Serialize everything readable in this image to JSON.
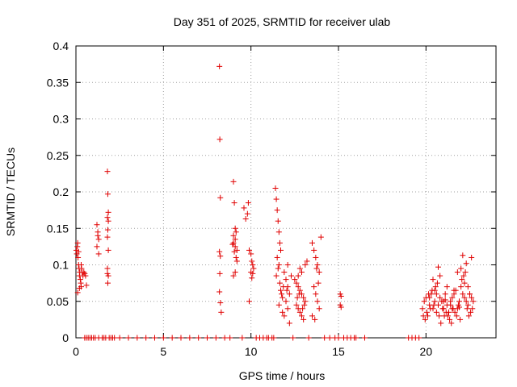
{
  "chart_data": {
    "type": "scatter",
    "title": "Day 351 of 2025, SRMTID for receiver ulab",
    "xlabel": "GPS time / hours",
    "ylabel": "SRMTID / TECUs",
    "xlim": [
      0,
      24
    ],
    "ylim": [
      0,
      0.4
    ],
    "xticks": [
      0,
      5,
      10,
      15,
      20
    ],
    "xtick_labels": [
      "0",
      "5",
      "10",
      "15",
      "20"
    ],
    "yticks": [
      0,
      0.05,
      0.1,
      0.15,
      0.2,
      0.25,
      0.3,
      0.35,
      0.4
    ],
    "ytick_labels": [
      "0",
      "0.05",
      "0.1",
      "0.15",
      "0.2",
      "0.25",
      "0.3",
      "0.35",
      "0.4"
    ],
    "grid": true,
    "marker": "+",
    "color": "#e00000",
    "series": [
      {
        "name": "SRMTID",
        "x": [
          0.02,
          0.05,
          0.08,
          0.1,
          0.12,
          0.15,
          0.18,
          0.2,
          0.22,
          0.25,
          0.28,
          0.3,
          0.32,
          0.35,
          0.4,
          0.45,
          0.5,
          0.55,
          0.6,
          0.1,
          0.2,
          0.3,
          0.15,
          1.2,
          1.25,
          1.3,
          1.2,
          1.3,
          1.25,
          1.8,
          1.82,
          1.85,
          1.8,
          1.85,
          1.82,
          1.8,
          1.85,
          1.8,
          1.85,
          1.82,
          1.8,
          8.2,
          8.22,
          8.25,
          8.2,
          8.25,
          8.22,
          8.2,
          8.25,
          8.3,
          9.0,
          9.05,
          9.1,
          9.15,
          9.0,
          9.1,
          9.05,
          9.15,
          9.2,
          9.0,
          9.1,
          8.95,
          9.2,
          9.1,
          9.0,
          9.6,
          9.7,
          9.8,
          9.85,
          9.9,
          10.0,
          10.05,
          10.1,
          10.15,
          10.0,
          10.1,
          10.05,
          9.9,
          11.4,
          11.45,
          11.5,
          11.55,
          11.6,
          11.65,
          11.7,
          11.5,
          11.6,
          11.55,
          11.45,
          11.65,
          11.7,
          11.75,
          11.8,
          11.6,
          11.9,
          12.0,
          12.1,
          12.2,
          12.0,
          12.1,
          11.8,
          11.9,
          12.2,
          12.3,
          12.1,
          11.85,
          12.05,
          12.5,
          12.6,
          12.7,
          12.8,
          12.9,
          13.0,
          13.1,
          12.6,
          12.7,
          12.8,
          12.9,
          13.0,
          12.7,
          12.9,
          13.1,
          13.2,
          12.8,
          12.65,
          12.75,
          12.95,
          13.05,
          13.5,
          13.6,
          13.7,
          13.8,
          13.9,
          14.0,
          13.6,
          13.7,
          13.8,
          13.9,
          13.5,
          13.75,
          13.85,
          13.65,
          15.1,
          15.15,
          15.1,
          15.15,
          19.8,
          19.9,
          20.0,
          20.1,
          20.2,
          20.3,
          20.4,
          20.5,
          20.6,
          20.7,
          20.8,
          20.9,
          21.0,
          21.1,
          21.2,
          21.3,
          21.4,
          21.5,
          21.6,
          21.7,
          21.8,
          21.9,
          22.0,
          22.1,
          22.2,
          22.3,
          22.4,
          22.5,
          22.6,
          22.7,
          19.85,
          19.95,
          20.05,
          20.15,
          20.25,
          20.35,
          20.45,
          20.55,
          20.65,
          20.75,
          20.85,
          20.95,
          21.05,
          21.15,
          21.25,
          21.35,
          21.45,
          21.55,
          21.65,
          21.75,
          21.85,
          21.95,
          22.05,
          22.15,
          22.25,
          22.35,
          22.45,
          22.55,
          22.65,
          20.2,
          20.4,
          20.6,
          20.8,
          21.0,
          21.2,
          21.4,
          21.6,
          21.8,
          22.0,
          22.2,
          22.4,
          22.6,
          20.5,
          20.7,
          21.1,
          21.5,
          21.9,
          22.1,
          22.3,
          22.5,
          0.5,
          0.6,
          0.7,
          0.8,
          0.9,
          1.0,
          1.1,
          1.3,
          1.5,
          1.6,
          1.7,
          1.9,
          2.0,
          2.1,
          2.2,
          2.5,
          3.0,
          3.5,
          4.0,
          4.5,
          5.0,
          5.5,
          6.0,
          6.5,
          7.0,
          7.5,
          8.0,
          8.5,
          8.8,
          9.5,
          10.3,
          10.5,
          10.7,
          10.9,
          11.0,
          11.2,
          11.3,
          12.4,
          13.3,
          14.2,
          14.5,
          14.8,
          15.0,
          15.3,
          15.5,
          15.7,
          15.9,
          16.0,
          16.5,
          19.0,
          19.2,
          19.4,
          19.6
        ],
        "y": [
          0.12,
          0.115,
          0.125,
          0.13,
          0.11,
          0.1,
          0.095,
          0.085,
          0.09,
          0.08,
          0.075,
          0.07,
          0.095,
          0.09,
          0.085,
          0.09,
          0.088,
          0.085,
          0.072,
          0.062,
          0.068,
          0.1,
          0.118,
          0.155,
          0.14,
          0.135,
          0.125,
          0.115,
          0.145,
          0.228,
          0.197,
          0.172,
          0.165,
          0.16,
          0.148,
          0.138,
          0.12,
          0.095,
          0.085,
          0.075,
          0.088,
          0.372,
          0.272,
          0.192,
          0.118,
          0.112,
          0.088,
          0.063,
          0.048,
          0.035,
          0.214,
          0.185,
          0.15,
          0.145,
          0.13,
          0.125,
          0.118,
          0.11,
          0.105,
          0.14,
          0.135,
          0.128,
          0.12,
          0.09,
          0.085,
          0.178,
          0.163,
          0.17,
          0.185,
          0.12,
          0.115,
          0.105,
          0.1,
          0.095,
          0.09,
          0.088,
          0.082,
          0.05,
          0.205,
          0.19,
          0.175,
          0.16,
          0.145,
          0.13,
          0.12,
          0.11,
          0.1,
          0.095,
          0.085,
          0.075,
          0.065,
          0.06,
          0.055,
          0.045,
          0.09,
          0.08,
          0.07,
          0.06,
          0.05,
          0.04,
          0.035,
          0.03,
          0.02,
          0.085,
          0.1,
          0.07,
          0.065,
          0.08,
          0.075,
          0.07,
          0.065,
          0.06,
          0.055,
          0.05,
          0.045,
          0.04,
          0.035,
          0.03,
          0.025,
          0.085,
          0.09,
          0.1,
          0.105,
          0.095,
          0.055,
          0.06,
          0.04,
          0.045,
          0.13,
          0.12,
          0.11,
          0.1,
          0.09,
          0.138,
          0.07,
          0.06,
          0.05,
          0.04,
          0.03,
          0.095,
          0.075,
          0.025,
          0.06,
          0.057,
          0.045,
          0.042,
          0.04,
          0.05,
          0.055,
          0.03,
          0.045,
          0.06,
          0.04,
          0.05,
          0.035,
          0.045,
          0.055,
          0.05,
          0.04,
          0.06,
          0.045,
          0.035,
          0.05,
          0.055,
          0.06,
          0.065,
          0.04,
          0.05,
          0.07,
          0.06,
          0.055,
          0.05,
          0.045,
          0.06,
          0.055,
          0.05,
          0.03,
          0.025,
          0.035,
          0.06,
          0.04,
          0.065,
          0.045,
          0.07,
          0.075,
          0.03,
          0.02,
          0.04,
          0.03,
          0.035,
          0.03,
          0.025,
          0.02,
          0.04,
          0.035,
          0.03,
          0.045,
          0.025,
          0.08,
          0.085,
          0.09,
          0.04,
          0.03,
          0.035,
          0.04,
          0.055,
          0.08,
          0.06,
          0.085,
          0.05,
          0.07,
          0.045,
          0.065,
          0.09,
          0.095,
          0.075,
          0.07,
          0.11,
          0.065,
          0.097,
          0.052,
          0.04,
          0.042,
          0.113,
          0.102,
          0.06,
          0,
          0,
          0,
          0,
          0,
          0,
          0,
          0,
          0,
          0,
          0,
          0,
          0,
          0,
          0,
          0,
          0,
          0,
          0,
          0,
          0,
          0,
          0,
          0,
          0,
          0,
          0,
          0,
          0,
          0,
          0,
          0,
          0,
          0,
          0,
          0,
          0,
          0,
          0,
          0,
          0,
          0,
          0,
          0,
          0,
          0,
          0,
          0,
          0,
          0,
          0,
          0,
          0
        ]
      }
    ]
  }
}
